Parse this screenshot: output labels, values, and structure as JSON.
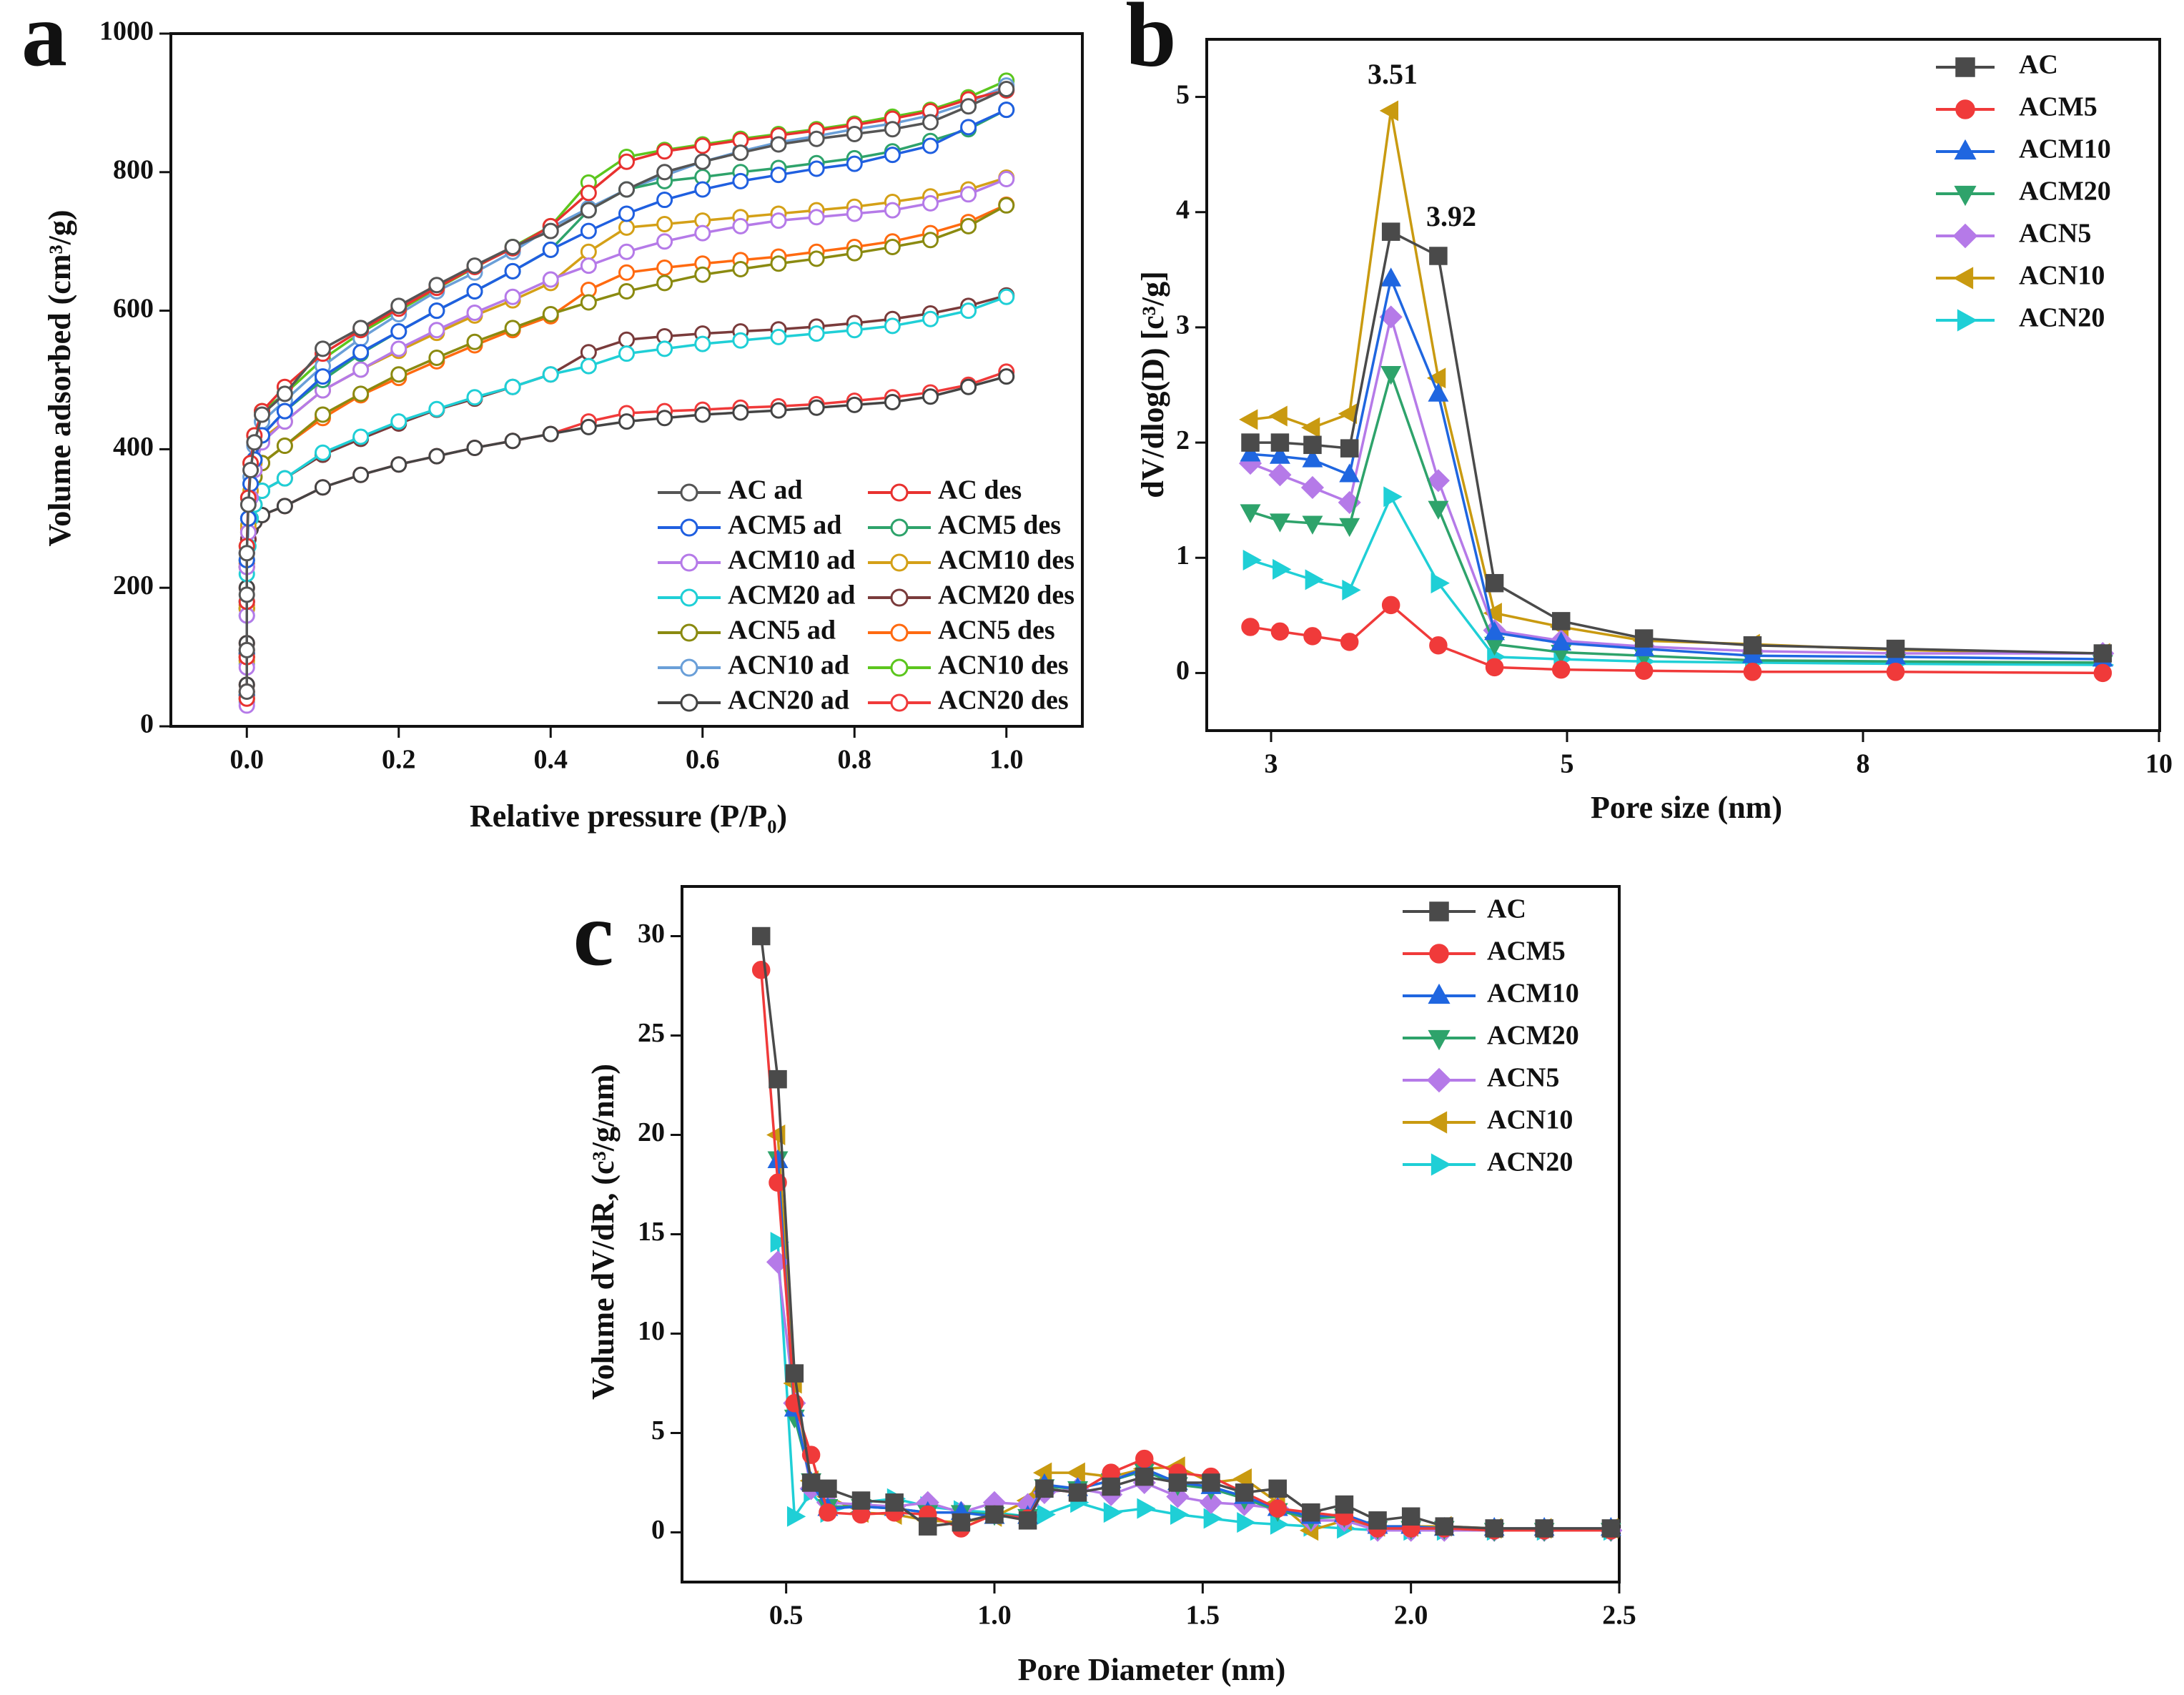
{
  "chart_data": [
    {
      "panel_label": "a",
      "type": "line",
      "title": "",
      "xlabel": "Relative pressure (P/P₀)",
      "ylabel": "Volume adsorbed (cm³/g)",
      "xlim": [
        -0.1,
        1.1
      ],
      "ylim": [
        0,
        1000
      ],
      "xticks": [
        "0.0",
        "0.2",
        "0.4",
        "0.6",
        "0.8",
        "1.0"
      ],
      "yticks": [
        "0",
        "200",
        "400",
        "600",
        "800",
        "1000"
      ],
      "legend": "bottom-right",
      "x": [
        0,
        0,
        0,
        0,
        0.002,
        0.005,
        0.01,
        0.02,
        0.05,
        0.1,
        0.15,
        0.2,
        0.25,
        0.3,
        0.35,
        0.4,
        0.45,
        0.5,
        0.55,
        0.6,
        0.65,
        0.7,
        0.75,
        0.8,
        0.85,
        0.9,
        0.95,
        1.0
      ],
      "series": [
        {
          "name": "AC ad",
          "color": "#555555",
          "marker": "open-circle",
          "values": [
            50,
            110,
            190,
            250,
            320,
            370,
            410,
            450,
            480,
            545,
            575,
            607,
            637,
            665,
            692,
            715,
            745,
            775,
            800,
            815,
            828,
            840,
            848,
            855,
            862,
            872,
            895,
            920
          ]
        },
        {
          "name": "AC des",
          "color": "#e8312f",
          "marker": "open-circle",
          "values": [
            40,
            100,
            180,
            260,
            330,
            380,
            420,
            455,
            490,
            538,
            572,
            603,
            633,
            663,
            690,
            722,
            770,
            815,
            830,
            838,
            846,
            853,
            860,
            868,
            877,
            888,
            905,
            918
          ]
        },
        {
          "name": "ACM5 ad",
          "color": "#1f5fe0",
          "marker": "open-circle",
          "values": [
            45,
            105,
            180,
            240,
            300,
            350,
            385,
            420,
            455,
            505,
            540,
            570,
            600,
            628,
            657,
            688,
            715,
            740,
            760,
            775,
            787,
            796,
            805,
            812,
            825,
            838,
            865,
            890
          ]
        },
        {
          "name": "ACM5 des",
          "color": "#2ea36b",
          "marker": "open-circle",
          "values": [
            45,
            105,
            180,
            240,
            300,
            350,
            385,
            420,
            455,
            500,
            538,
            570,
            600,
            628,
            657,
            688,
            745,
            775,
            787,
            793,
            800,
            806,
            813,
            820,
            830,
            845,
            862,
            890
          ]
        },
        {
          "name": "ACM10 ad",
          "color": "#b57ae8",
          "marker": "open-circle",
          "values": [
            30,
            85,
            160,
            230,
            280,
            330,
            370,
            410,
            440,
            485,
            515,
            545,
            572,
            597,
            620,
            645,
            665,
            685,
            700,
            712,
            722,
            730,
            735,
            740,
            745,
            755,
            768,
            790
          ]
        },
        {
          "name": "ACM10 des",
          "color": "#d4a017",
          "marker": "open-circle",
          "values": [
            40,
            95,
            170,
            240,
            290,
            340,
            380,
            415,
            440,
            485,
            515,
            542,
            568,
            593,
            615,
            640,
            685,
            720,
            725,
            730,
            735,
            740,
            745,
            750,
            757,
            765,
            775,
            792
          ]
        },
        {
          "name": "ACM20 ad",
          "color": "#1fcfd6",
          "marker": "open-circle",
          "values": [
            40,
            95,
            160,
            220,
            260,
            300,
            320,
            340,
            358,
            395,
            418,
            440,
            458,
            475,
            490,
            508,
            520,
            538,
            545,
            552,
            557,
            562,
            567,
            572,
            578,
            588,
            600,
            620
          ]
        },
        {
          "name": "ACM20 des",
          "color": "#7a3b3b",
          "marker": "open-circle",
          "values": [
            50,
            110,
            170,
            230,
            270,
            300,
            320,
            340,
            358,
            392,
            415,
            437,
            457,
            473,
            490,
            508,
            540,
            558,
            563,
            567,
            570,
            573,
            577,
            582,
            588,
            596,
            607,
            622
          ]
        },
        {
          "name": "ACN5 ad",
          "color": "#8a8a10",
          "marker": "open-circle",
          "values": [
            45,
            100,
            170,
            230,
            280,
            320,
            360,
            380,
            405,
            450,
            480,
            508,
            532,
            555,
            575,
            595,
            612,
            628,
            640,
            652,
            660,
            668,
            675,
            683,
            692,
            702,
            722,
            752
          ]
        },
        {
          "name": "ACN5 des",
          "color": "#ff6a10",
          "marker": "open-circle",
          "values": [
            50,
            105,
            175,
            235,
            285,
            325,
            360,
            380,
            405,
            445,
            478,
            503,
            527,
            550,
            572,
            592,
            630,
            655,
            662,
            668,
            673,
            678,
            685,
            692,
            700,
            712,
            728,
            753
          ]
        },
        {
          "name": "ACN10 ad",
          "color": "#6a9fd8",
          "marker": "open-circle",
          "values": [
            35,
            90,
            170,
            250,
            300,
            360,
            405,
            440,
            470,
            520,
            560,
            595,
            628,
            655,
            685,
            720,
            748,
            775,
            795,
            815,
            830,
            843,
            852,
            862,
            870,
            882,
            900,
            925
          ]
        },
        {
          "name": "ACN10 des",
          "color": "#5cc61e",
          "marker": "open-circle",
          "values": [
            40,
            100,
            180,
            260,
            330,
            380,
            420,
            455,
            480,
            530,
            568,
            600,
            632,
            662,
            692,
            722,
            785,
            822,
            832,
            840,
            848,
            855,
            862,
            870,
            880,
            890,
            908,
            932
          ]
        },
        {
          "name": "ACN20 ad",
          "color": "#444444",
          "marker": "open-circle",
          "values": [
            60,
            120,
            200,
            250,
            270,
            285,
            295,
            305,
            318,
            345,
            363,
            378,
            390,
            402,
            412,
            422,
            432,
            440,
            445,
            450,
            453,
            456,
            460,
            464,
            468,
            476,
            490,
            505
          ]
        },
        {
          "name": "ACN20 des",
          "color": "#f03a3a",
          "marker": "open-circle",
          "values": [
            60,
            120,
            200,
            250,
            270,
            285,
            295,
            305,
            318,
            345,
            363,
            378,
            390,
            402,
            412,
            422,
            440,
            452,
            455,
            457,
            460,
            462,
            465,
            470,
            475,
            482,
            493,
            512
          ]
        }
      ]
    },
    {
      "panel_label": "b",
      "type": "line",
      "title": "",
      "xlabel": "Pore size (nm)",
      "ylabel": "dV/dlog(D) [c³/g]",
      "xticks": [
        "3",
        "5",
        "8",
        "10"
      ],
      "ylim": [
        -0.5,
        5.5
      ],
      "yticks": [
        "0",
        "1",
        "2",
        "3",
        "4",
        "5"
      ],
      "legend": "top-right",
      "annotations": [
        {
          "text": "3.51"
        },
        {
          "text": "3.92"
        }
      ],
      "x": [
        2.86,
        3.06,
        3.28,
        3.53,
        3.81,
        4.13,
        4.51,
        4.96,
        5.78,
        6.88,
        8.22,
        9.62
      ],
      "series": [
        {
          "name": "AC",
          "color": "#4a4a4a",
          "marker": "square",
          "values": [
            2.0,
            2.0,
            1.98,
            1.95,
            3.83,
            3.62,
            0.78,
            0.45,
            0.3,
            0.24,
            0.21,
            0.17
          ]
        },
        {
          "name": "ACM5",
          "color": "#f03a3a",
          "marker": "circle",
          "values": [
            0.4,
            0.36,
            0.32,
            0.27,
            0.59,
            0.24,
            0.05,
            0.03,
            0.02,
            0.01,
            0.01,
            0.0
          ]
        },
        {
          "name": "ACM10",
          "color": "#1f66e0",
          "marker": "triangle-up",
          "values": [
            1.9,
            1.88,
            1.85,
            1.72,
            3.42,
            2.42,
            0.35,
            0.26,
            0.21,
            0.15,
            0.14,
            0.12
          ]
        },
        {
          "name": "ACM20",
          "color": "#2ea36b",
          "marker": "triangle-down",
          "values": [
            1.4,
            1.32,
            1.3,
            1.28,
            2.6,
            1.43,
            0.25,
            0.18,
            0.15,
            0.11,
            0.1,
            0.09
          ]
        },
        {
          "name": "ACN5",
          "color": "#b57ae8",
          "marker": "diamond",
          "values": [
            1.82,
            1.72,
            1.61,
            1.48,
            3.09,
            1.67,
            0.37,
            0.28,
            0.23,
            0.19,
            0.17,
            0.17
          ]
        },
        {
          "name": "ACN10",
          "color": "#c99a10",
          "marker": "triangle-left",
          "values": [
            2.2,
            2.23,
            2.13,
            2.25,
            4.88,
            2.56,
            0.52,
            0.4,
            0.28,
            0.25,
            0.2,
            0.17
          ]
        },
        {
          "name": "ACN20",
          "color": "#1fcfd6",
          "marker": "triangle-right",
          "values": [
            0.98,
            0.9,
            0.81,
            0.72,
            1.53,
            0.78,
            0.14,
            0.12,
            0.1,
            0.09,
            0.08,
            0.07
          ]
        }
      ]
    },
    {
      "panel_label": "c",
      "type": "line",
      "title": "",
      "xlabel": "Pore Diameter (nm)",
      "ylabel": "Volume dV/dR, (c³/g/nm)",
      "xlim": [
        0.25,
        2.5
      ],
      "ylim": [
        -2.5,
        32.5
      ],
      "xticks": [
        "0.5",
        "1.0",
        "1.5",
        "2.0",
        "2.5"
      ],
      "yticks": [
        "0",
        "5",
        "10",
        "15",
        "20",
        "25",
        "30"
      ],
      "legend": "top-right",
      "x": [
        0.44,
        0.48,
        0.52,
        0.56,
        0.6,
        0.68,
        0.76,
        0.84,
        0.92,
        1.0,
        1.08,
        1.12,
        1.2,
        1.28,
        1.36,
        1.44,
        1.52,
        1.6,
        1.68,
        1.76,
        1.84,
        1.92,
        2.0,
        2.08,
        2.2,
        2.32,
        2.48
      ],
      "series": [
        {
          "name": "AC",
          "color": "#4a4a4a",
          "marker": "square",
          "values": [
            30,
            22.8,
            8,
            2.5,
            2.2,
            1.6,
            1.5,
            0.3,
            0.5,
            0.9,
            0.6,
            2.2,
            2.0,
            2.3,
            2.8,
            2.5,
            2.5,
            2.0,
            2.2,
            1.0,
            1.4,
            0.6,
            0.8,
            0.3,
            0.2,
            0.2,
            0.2
          ]
        },
        {
          "name": "ACM5",
          "color": "#f03a3a",
          "marker": "circle",
          "values": [
            28.3,
            17.6,
            6.5,
            3.9,
            1.0,
            0.9,
            1.0,
            0.9,
            0.2,
            0.9,
            0.7,
            2.2,
            2.0,
            3.0,
            3.7,
            3.0,
            2.8,
            2.0,
            1.2,
            1.0,
            0.8,
            0.2,
            0.2,
            0.2,
            0.1,
            0.1,
            0.1
          ]
        },
        {
          "name": "ACM10",
          "color": "#1f66e0",
          "marker": "triangle-up",
          "values": [
            null,
            18.7,
            6.2,
            2.5,
            1.2,
            1.3,
            1.2,
            1.0,
            1.0,
            0.8,
            0.8,
            2.4,
            2.2,
            2.6,
            3.2,
            2.5,
            2.3,
            1.8,
            1.2,
            0.8,
            0.9,
            0.3,
            0.3,
            0.2,
            0.2,
            0.2,
            0.2
          ]
        },
        {
          "name": "ACM20",
          "color": "#2ea36b",
          "marker": "triangle-down",
          "values": [
            null,
            18.8,
            5.8,
            2.6,
            1.3,
            1.3,
            1.2,
            1.0,
            1.0,
            0.9,
            0.8,
            2.3,
            2.2,
            2.6,
            3.1,
            2.4,
            2.2,
            1.7,
            1.1,
            0.7,
            0.8,
            0.2,
            0.2,
            0.2,
            0.1,
            0.1,
            0.1
          ]
        },
        {
          "name": "ACN5",
          "color": "#b57ae8",
          "marker": "diamond",
          "values": [
            null,
            13.6,
            6.5,
            2.2,
            1.5,
            1.4,
            1.3,
            1.5,
            1.0,
            1.5,
            1.4,
            2.0,
            2.2,
            1.9,
            2.5,
            1.8,
            1.5,
            1.4,
            1.2,
            0.6,
            0.6,
            0.1,
            0.1,
            0.1,
            0.1,
            0.1,
            0.1
          ]
        },
        {
          "name": "ACN10",
          "color": "#c99a10",
          "marker": "triangle-left",
          "values": [
            null,
            20,
            7.5,
            2.6,
            1.8,
            1.0,
            0.9,
            0.6,
            0.5,
            0.8,
            1.6,
            3.0,
            3.0,
            2.8,
            3.2,
            3.3,
            2.5,
            2.7,
            1.5,
            0.1,
            0.6,
            0.3,
            0.3,
            0.3,
            0.2,
            0.2,
            0.2
          ]
        },
        {
          "name": "ACN20",
          "color": "#1fcfd6",
          "marker": "triangle-right",
          "values": [
            null,
            14.6,
            0.8,
            2.0,
            1.0,
            1.5,
            1.7,
            1.3,
            1.1,
            1.0,
            0.8,
            0.9,
            1.5,
            1.0,
            1.2,
            0.9,
            0.7,
            0.5,
            0.4,
            0.3,
            0.2,
            0.1,
            0.1,
            0.1,
            0.1,
            0.1,
            0.1
          ]
        }
      ]
    }
  ]
}
